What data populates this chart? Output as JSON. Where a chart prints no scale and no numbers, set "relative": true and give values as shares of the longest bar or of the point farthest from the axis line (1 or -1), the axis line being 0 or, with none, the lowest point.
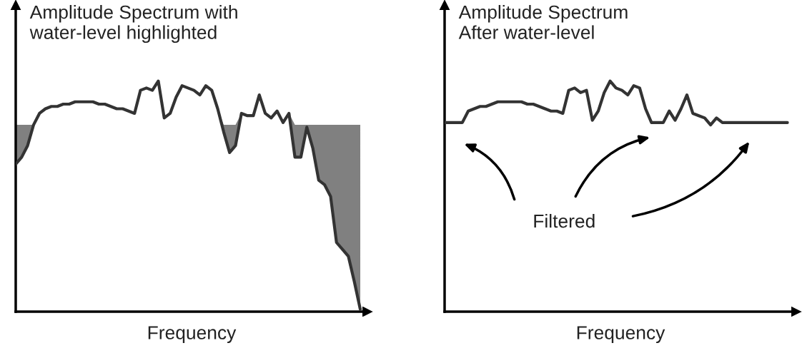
{
  "chart_data": [
    {
      "type": "line",
      "title": "Amplitude Spectrum with\nwater-level highlighted",
      "xlabel": "Frequency",
      "relative": true,
      "categories": [
        null,
        null,
        null,
        null,
        null,
        null,
        null,
        null,
        null,
        null,
        null,
        null,
        null,
        null,
        null,
        null,
        null,
        null,
        null,
        null,
        null,
        null,
        null,
        null,
        null,
        null,
        null,
        null,
        null,
        null,
        null,
        null,
        null,
        null,
        null,
        null,
        null,
        null,
        null,
        null,
        null,
        null,
        null,
        null,
        null,
        null,
        null,
        null,
        null,
        null,
        null,
        null,
        null,
        null,
        null,
        null,
        null,
        null,
        null
      ],
      "series": [
        {
          "color": "#333333",
          "lower": [
            0.64,
            0.67,
            0.72,
            0.81,
            0.86,
            0.88,
            0.89,
            0.89,
            0.9,
            0.9,
            0.91,
            0.91,
            0.91,
            0.91,
            0.9,
            0.9,
            0.89,
            0.88,
            0.88,
            0.87,
            0.86,
            0.96,
            0.97,
            0.96,
            1.0,
            0.84,
            0.86,
            0.93,
            0.98,
            0.97,
            0.96,
            0.94,
            0.98,
            0.96,
            0.88,
            0.78,
            0.69,
            0.72,
            0.86,
            0.85,
            0.85,
            0.94,
            0.86,
            0.84,
            0.87,
            0.82,
            0.86,
            0.67,
            0.67,
            0.8,
            0.71,
            0.57,
            0.55,
            0.5,
            0.3,
            0.27,
            0.24,
            0.13,
            0.01
          ],
          "upper": [
            0.81,
            0.81,
            0.81,
            0.81,
            0.86,
            0.88,
            0.89,
            0.89,
            0.9,
            0.9,
            0.91,
            0.91,
            0.91,
            0.91,
            0.9,
            0.9,
            0.89,
            0.88,
            0.88,
            0.87,
            0.86,
            0.96,
            0.97,
            0.96,
            1.0,
            0.84,
            0.86,
            0.93,
            0.98,
            0.97,
            0.96,
            0.94,
            0.98,
            0.96,
            0.88,
            0.81,
            0.81,
            0.81,
            0.86,
            0.85,
            0.85,
            0.94,
            0.86,
            0.84,
            0.87,
            0.82,
            0.86,
            0.81,
            0.81,
            0.81,
            0.81,
            0.81,
            0.81,
            0.81,
            0.81,
            0.81,
            0.81,
            0.81,
            0.81
          ],
          "values": [
            0.64,
            0.67,
            0.72,
            0.81,
            0.86,
            0.88,
            0.89,
            0.89,
            0.9,
            0.9,
            0.91,
            0.91,
            0.91,
            0.91,
            0.9,
            0.9,
            0.89,
            0.88,
            0.88,
            0.87,
            0.86,
            0.96,
            0.97,
            0.96,
            1.0,
            0.84,
            0.86,
            0.93,
            0.98,
            0.97,
            0.96,
            0.94,
            0.98,
            0.96,
            0.88,
            0.78,
            0.69,
            0.72,
            0.86,
            0.85,
            0.85,
            0.94,
            0.86,
            0.84,
            0.87,
            0.82,
            0.86,
            0.67,
            0.67,
            0.8,
            0.71,
            0.57,
            0.55,
            0.5,
            0.3,
            0.27,
            0.24,
            0.13,
            0.01
          ]
        }
      ],
      "tick_labels": false
    },
    {
      "type": "line",
      "title": "Amplitude Spectrum\nAfter water-level",
      "xlabel": "Frequency",
      "relative": true,
      "categories": [
        null,
        null,
        null,
        null,
        null,
        null,
        null,
        null,
        null,
        null,
        null,
        null,
        null,
        null,
        null,
        null,
        null,
        null,
        null,
        null,
        null,
        null,
        null,
        null,
        null,
        null,
        null,
        null,
        null,
        null,
        null,
        null,
        null,
        null,
        null,
        null,
        null,
        null,
        null,
        null,
        null,
        null,
        null,
        null,
        null,
        null,
        null,
        null,
        null,
        null,
        null,
        null,
        null,
        null,
        null,
        null,
        null,
        null,
        null
      ],
      "series": [
        {
          "color": "#333333",
          "values": [
            0.82,
            0.82,
            0.82,
            0.82,
            0.87,
            0.88,
            0.89,
            0.89,
            0.9,
            0.91,
            0.91,
            0.91,
            0.91,
            0.91,
            0.9,
            0.9,
            0.89,
            0.88,
            0.87,
            0.87,
            0.86,
            0.96,
            0.97,
            0.95,
            0.96,
            0.83,
            0.87,
            0.95,
            1.0,
            0.97,
            0.96,
            0.94,
            0.98,
            0.97,
            0.88,
            0.82,
            0.82,
            0.82,
            0.87,
            0.83,
            0.88,
            0.94,
            0.86,
            0.85,
            0.84,
            0.81,
            0.84,
            0.82,
            0.82,
            0.82,
            0.82,
            0.82,
            0.82,
            0.82,
            0.82,
            0.82,
            0.82,
            0.82,
            0.82
          ]
        }
      ],
      "annotations": [
        "Filtered"
      ],
      "tick_labels": false
    }
  ]
}
